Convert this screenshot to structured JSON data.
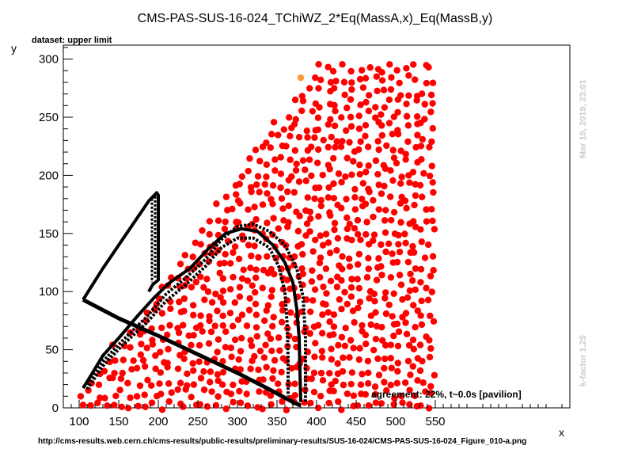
{
  "chart_data": {
    "type": "scatter",
    "title": "CMS-PAS-SUS-16-024_TChiWZ_2*Eq(MassA,x)_Eq(MassB,y)",
    "dataset_label": "dataset: upper limit",
    "xlabel": "x",
    "ylabel": "y",
    "xlim": [
      80,
      720
    ],
    "ylim": [
      0,
      312
    ],
    "xticks": [
      100,
      150,
      200,
      250,
      300,
      350,
      400,
      450,
      500,
      550
    ],
    "yticks": [
      0,
      50,
      100,
      150,
      200,
      250,
      300
    ],
    "date_stamp": "Mar 19, 2019, 23:01",
    "kfactor": "k-factor 1.25",
    "agreement_text": "agreement: 22%, t~0.0s [pavilion]",
    "url": "http://cms-results.web.cern.ch/cms-results/public-results/preliminary-results/SUS-16-024/CMS-PAS-SUS-16-024_Figure_010-a.png",
    "colors": {
      "points": "#ff0000",
      "highlight": "#ff9933",
      "contour": "#000000"
    },
    "highlight_point": {
      "x": 380,
      "y": 284
    },
    "grid_region": {
      "xmin": 105,
      "xmax": 550,
      "point_spacing": 10,
      "diagonal_limit_offset": 0,
      "ymax": 295
    },
    "observed_contour": [
      [
        105,
        17
      ],
      [
        115,
        28
      ],
      [
        130,
        45
      ],
      [
        150,
        60
      ],
      [
        175,
        80
      ],
      [
        195,
        95
      ],
      [
        215,
        108
      ],
      [
        240,
        120
      ],
      [
        265,
        138
      ],
      [
        285,
        150
      ],
      [
        305,
        154
      ],
      [
        325,
        152
      ],
      [
        345,
        140
      ],
      [
        360,
        125
      ],
      [
        370,
        108
      ],
      [
        375,
        85
      ],
      [
        378,
        60
      ],
      [
        379,
        30
      ],
      [
        380,
        5
      ]
    ],
    "expected_contour_up": [
      [
        110,
        20
      ],
      [
        130,
        40
      ],
      [
        155,
        58
      ],
      [
        185,
        78
      ],
      [
        210,
        98
      ],
      [
        235,
        112
      ],
      [
        260,
        128
      ],
      [
        280,
        145
      ],
      [
        300,
        156
      ],
      [
        320,
        158
      ],
      [
        340,
        152
      ],
      [
        360,
        140
      ],
      [
        375,
        120
      ],
      [
        383,
        95
      ],
      [
        386,
        60
      ],
      [
        386,
        25
      ],
      [
        386,
        4
      ]
    ],
    "expected_contour_down": [
      [
        110,
        16
      ],
      [
        130,
        36
      ],
      [
        155,
        54
      ],
      [
        185,
        73
      ],
      [
        210,
        92
      ],
      [
        235,
        106
      ],
      [
        260,
        122
      ],
      [
        280,
        138
      ],
      [
        300,
        146
      ],
      [
        320,
        146
      ],
      [
        340,
        138
      ],
      [
        352,
        122
      ],
      [
        360,
        100
      ],
      [
        363,
        70
      ],
      [
        364,
        40
      ],
      [
        364,
        10
      ]
    ],
    "left_branch": [
      [
        105,
        93
      ],
      [
        130,
        120
      ],
      [
        160,
        150
      ],
      [
        188,
        178
      ],
      [
        198,
        185
      ],
      [
        200,
        183
      ],
      [
        200,
        110
      ],
      [
        193,
        106
      ],
      [
        188,
        100
      ]
    ],
    "left_branch_dashed": [
      [
        192,
        180
      ],
      [
        192,
        108
      ],
      [
        196,
        182
      ],
      [
        196,
        112
      ]
    ],
    "diagonal_line": [
      [
        105,
        93
      ],
      [
        150,
        77
      ],
      [
        200,
        62
      ],
      [
        250,
        46
      ],
      [
        300,
        30
      ],
      [
        340,
        16
      ],
      [
        370,
        5
      ],
      [
        380,
        2
      ]
    ]
  }
}
